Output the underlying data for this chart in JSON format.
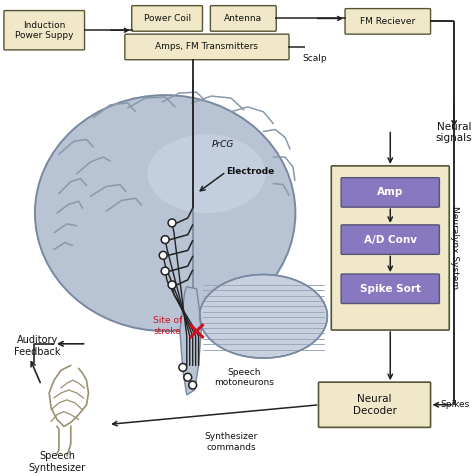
{
  "bg_color": "#ffffff",
  "box_fill_tan": "#f0e8c8",
  "box_stroke": "#555533",
  "box_fill_purple": "#8878c0",
  "arrow_color": "#222222",
  "red_color": "#cc1122",
  "brain_fill": "#b8c4d4",
  "brain_edge": "#7888a0",
  "cerebellum_fill": "#c8d0e0",
  "brainstem_fill": "#b8c4d4",
  "sulci_color": "#8899aa",
  "text_color": "#111111",
  "white": "#ffffff",
  "vt_color": "#9a9070",
  "labels": {
    "induction": "Induction\nPower Suppy",
    "power_coil": "Power Coil",
    "antenna": "Antenna",
    "fm_receiver": "FM Reciever",
    "amps_fm": "Amps, FM Transmitters",
    "scalp": "Scalp",
    "neural_signals": "Neural\nsignals",
    "amp": "Amp",
    "ad_conv": "A/D Conv",
    "spike_sort": "Spike Sort",
    "neuralynx": "Neuralynx System",
    "neural_decoder": "Neural\nDecoder",
    "spikes": "Spikes",
    "synth_commands": "Synthesizer\ncommands",
    "speech_synth": "Speech\nSynthesizer",
    "auditory": "Auditory\nFeedback",
    "prcg": "PrCG",
    "electrode": "Electrode",
    "site_of_stroke": "Site of\nstroke",
    "speech_motoneurons": "Speech\nmotoneurons"
  }
}
